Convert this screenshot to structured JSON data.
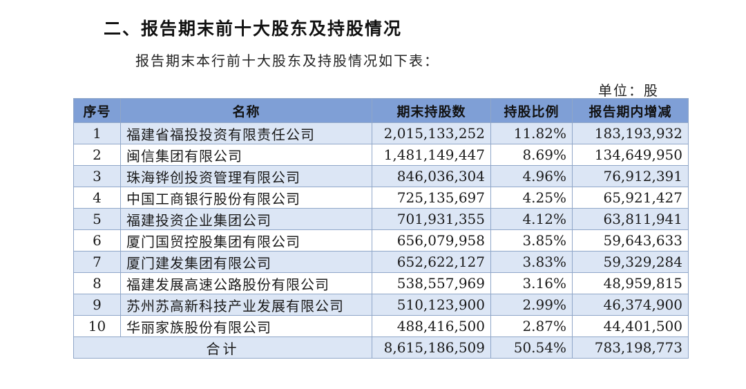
{
  "heading": "二、报告期末前十大股东及持股情况",
  "intro": "报告期末本行前十大股东及持股情况如下表：",
  "unit_label": "单位：股",
  "table": {
    "headers": [
      "序号",
      "名称",
      "期末持股数",
      "持股比例",
      "报告期内增减"
    ],
    "rows": [
      {
        "idx": "1",
        "name": "福建省福投投资有限责任公司",
        "shares": "2,015,133,252",
        "ratio": "11.82%",
        "change": "183,193,932"
      },
      {
        "idx": "2",
        "name": "闽信集团有限公司",
        "shares": "1,481,149,447",
        "ratio": "8.69%",
        "change": "134,649,950"
      },
      {
        "idx": "3",
        "name": "珠海铧创投资管理有限公司",
        "shares": "846,036,304",
        "ratio": "4.96%",
        "change": "76,912,391"
      },
      {
        "idx": "4",
        "name": "中国工商银行股份有限公司",
        "shares": "725,135,697",
        "ratio": "4.25%",
        "change": "65,921,427"
      },
      {
        "idx": "5",
        "name": "福建投资企业集团公司",
        "shares": "701,931,355",
        "ratio": "4.12%",
        "change": "63,811,941"
      },
      {
        "idx": "6",
        "name": "厦门国贸控股集团有限公司",
        "shares": "656,079,958",
        "ratio": "3.85%",
        "change": "59,643,633"
      },
      {
        "idx": "7",
        "name": "厦门建发集团有限公司",
        "shares": "652,622,127",
        "ratio": "3.83%",
        "change": "59,329,284"
      },
      {
        "idx": "8",
        "name": "福建发展高速公路股份有限公司",
        "shares": "538,557,969",
        "ratio": "3.16%",
        "change": "48,959,815"
      },
      {
        "idx": "9",
        "name": "苏州苏高新科技产业发展有限公司",
        "shares": "510,123,900",
        "ratio": "2.99%",
        "change": "46,374,900"
      },
      {
        "idx": "10",
        "name": "华丽家族股份有限公司",
        "shares": "488,416,500",
        "ratio": "2.87%",
        "change": "44,401,500"
      }
    ],
    "total": {
      "label": "合计",
      "shares": "8,615,186,509",
      "ratio": "50.54%",
      "change": "783,198,773"
    }
  }
}
